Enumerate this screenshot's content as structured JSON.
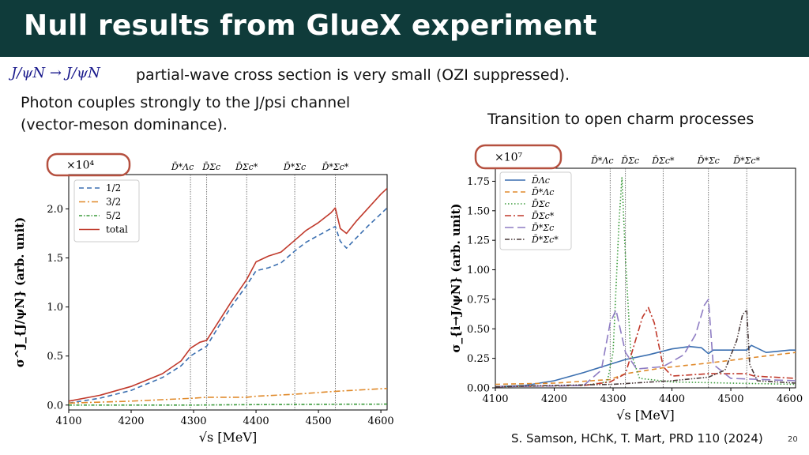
{
  "slide": {
    "title": "Null results from GlueX experiment",
    "formula": "J/ψN → J/ψN",
    "line1": "partial-wave cross section is very small (OZI suppressed).",
    "left_note": [
      "Photon couples strongly to the J/psi channel",
      "(vector-meson dominance)."
    ],
    "right_note": "Transition to open charm processes",
    "citation": "S. Samson, HChK, T. Mart, PRD 110 (2024)",
    "page_number": "20",
    "colors": {
      "header": "#0f3b3a",
      "highlight_oval": "#b5503f"
    }
  },
  "chart_data": [
    {
      "type": "line",
      "xlabel": "√s [MeV]",
      "ylabel": "σ^J_{J/ψN} (arb. unit)",
      "offset_label": "×10⁴",
      "xlim": [
        4100,
        4610
      ],
      "ylim": [
        -0.05,
        2.35
      ],
      "xticks": [
        4100,
        4200,
        4300,
        4400,
        4500,
        4600
      ],
      "yticks": [
        0.0,
        0.5,
        1.0,
        1.5,
        2.0
      ],
      "ytick_labels": [
        "0.0",
        "0.5",
        "1.0",
        "1.5",
        "2.0"
      ],
      "thresholds": [
        {
          "x": 4295,
          "label": "D̄*Λc"
        },
        {
          "x": 4321,
          "label": "D̄Σc"
        },
        {
          "x": 4385,
          "label": "D̄Σc*"
        },
        {
          "x": 4462,
          "label": "D̄*Σc"
        },
        {
          "x": 4527,
          "label": "D̄*Σc*"
        }
      ],
      "legend_position": "upper-left",
      "series": [
        {
          "name": "1/2",
          "color": "#3b6fb0",
          "dash": "dashed",
          "x": [
            4100,
            4150,
            4200,
            4250,
            4280,
            4295,
            4310,
            4321,
            4340,
            4360,
            4385,
            4400,
            4420,
            4440,
            4462,
            4480,
            4500,
            4520,
            4527,
            4535,
            4545,
            4560,
            4580,
            4600,
            4610
          ],
          "y": [
            0.02,
            0.07,
            0.15,
            0.28,
            0.4,
            0.5,
            0.56,
            0.6,
            0.8,
            1.0,
            1.22,
            1.37,
            1.4,
            1.45,
            1.57,
            1.66,
            1.73,
            1.8,
            1.82,
            1.67,
            1.6,
            1.7,
            1.83,
            1.95,
            2.01
          ]
        },
        {
          "name": "3/2",
          "color": "#e08a2b",
          "dash": "dashdot",
          "x": [
            4100,
            4200,
            4300,
            4321,
            4385,
            4400,
            4462,
            4527,
            4610
          ],
          "y": [
            0.02,
            0.04,
            0.07,
            0.08,
            0.08,
            0.09,
            0.11,
            0.14,
            0.17
          ]
        },
        {
          "name": "5/2",
          "color": "#3a9a3a",
          "dash": "dashdot-dense",
          "x": [
            4100,
            4300,
            4400,
            4500,
            4610
          ],
          "y": [
            0.0,
            0.0,
            0.005,
            0.008,
            0.01
          ]
        },
        {
          "name": "total",
          "color": "#c0392b",
          "dash": "solid",
          "x": [
            4100,
            4150,
            4200,
            4250,
            4280,
            4295,
            4310,
            4321,
            4340,
            4360,
            4385,
            4400,
            4420,
            4440,
            4462,
            4480,
            4500,
            4520,
            4527,
            4535,
            4545,
            4560,
            4580,
            4600,
            4610
          ],
          "y": [
            0.04,
            0.1,
            0.19,
            0.32,
            0.45,
            0.58,
            0.64,
            0.66,
            0.85,
            1.05,
            1.28,
            1.46,
            1.52,
            1.56,
            1.68,
            1.78,
            1.86,
            1.96,
            2.01,
            1.8,
            1.75,
            1.87,
            2.01,
            2.15,
            2.21
          ]
        }
      ]
    },
    {
      "type": "line",
      "xlabel": "√s [MeV]",
      "ylabel": "σ_{i→J/ψN} (arb. unit)",
      "offset_label": "×10⁷",
      "xlim": [
        4100,
        4610
      ],
      "ylim": [
        0.0,
        1.86
      ],
      "xticks": [
        4100,
        4200,
        4300,
        4400,
        4500,
        4600
      ],
      "yticks": [
        0.0,
        0.25,
        0.5,
        0.75,
        1.0,
        1.25,
        1.5,
        1.75
      ],
      "ytick_labels": [
        "0.00",
        "0.25",
        "0.50",
        "0.75",
        "1.00",
        "1.25",
        "1.50",
        "1.75"
      ],
      "thresholds": [
        {
          "x": 4295,
          "label": "D̄*Λc"
        },
        {
          "x": 4321,
          "label": "D̄Σc"
        },
        {
          "x": 4385,
          "label": "D̄Σc*"
        },
        {
          "x": 4462,
          "label": "D̄*Σc"
        },
        {
          "x": 4527,
          "label": "D̄*Σc*"
        }
      ],
      "legend_position": "upper-left",
      "series": [
        {
          "name": "D̄Λc",
          "color": "#3b6fb0",
          "dash": "solid",
          "x": [
            4100,
            4150,
            4200,
            4250,
            4295,
            4321,
            4360,
            4400,
            4430,
            4450,
            4462,
            4470,
            4500,
            4527,
            4535,
            4560,
            4600,
            4610
          ],
          "y": [
            0.01,
            0.02,
            0.06,
            0.13,
            0.2,
            0.24,
            0.28,
            0.33,
            0.35,
            0.34,
            0.29,
            0.32,
            0.32,
            0.32,
            0.36,
            0.3,
            0.32,
            0.32
          ]
        },
        {
          "name": "D̄*Λc",
          "color": "#e08a2b",
          "dash": "dashed",
          "x": [
            4100,
            4200,
            4295,
            4321,
            4385,
            4462,
            4527,
            4560,
            4610
          ],
          "y": [
            0.03,
            0.04,
            0.07,
            0.12,
            0.17,
            0.21,
            0.25,
            0.27,
            0.3
          ]
        },
        {
          "name": "D̄Σc",
          "color": "#3a9a3a",
          "dash": "dotted",
          "x": [
            4100,
            4250,
            4290,
            4300,
            4310,
            4315,
            4321,
            4330,
            4345,
            4400,
            4500,
            4610
          ],
          "y": [
            0.01,
            0.02,
            0.05,
            0.3,
            1.4,
            1.78,
            1.1,
            0.3,
            0.08,
            0.05,
            0.04,
            0.03
          ]
        },
        {
          "name": "D̄Σc*",
          "color": "#c0392b",
          "dash": "dashdot",
          "x": [
            4100,
            4250,
            4295,
            4321,
            4335,
            4350,
            4360,
            4370,
            4385,
            4400,
            4462,
            4527,
            4540,
            4610
          ],
          "y": [
            0.01,
            0.02,
            0.05,
            0.12,
            0.35,
            0.6,
            0.68,
            0.55,
            0.18,
            0.1,
            0.12,
            0.12,
            0.1,
            0.08
          ]
        },
        {
          "name": "D̄*Σc",
          "color": "#8e7cc3",
          "dash": "longdash",
          "x": [
            4100,
            4250,
            4280,
            4295,
            4305,
            4321,
            4340,
            4385,
            4420,
            4440,
            4455,
            4462,
            4470,
            4500,
            4610
          ],
          "y": [
            0.01,
            0.02,
            0.15,
            0.55,
            0.66,
            0.3,
            0.16,
            0.18,
            0.28,
            0.45,
            0.7,
            0.75,
            0.2,
            0.08,
            0.06
          ]
        },
        {
          "name": "D̄*Σc*",
          "color": "#4a3a3a",
          "dash": "dashdotdot",
          "x": [
            4100,
            4300,
            4400,
            4462,
            4490,
            4510,
            4520,
            4527,
            4532,
            4545,
            4610
          ],
          "y": [
            0.01,
            0.03,
            0.06,
            0.09,
            0.15,
            0.4,
            0.62,
            0.66,
            0.2,
            0.06,
            0.04
          ]
        }
      ]
    }
  ]
}
